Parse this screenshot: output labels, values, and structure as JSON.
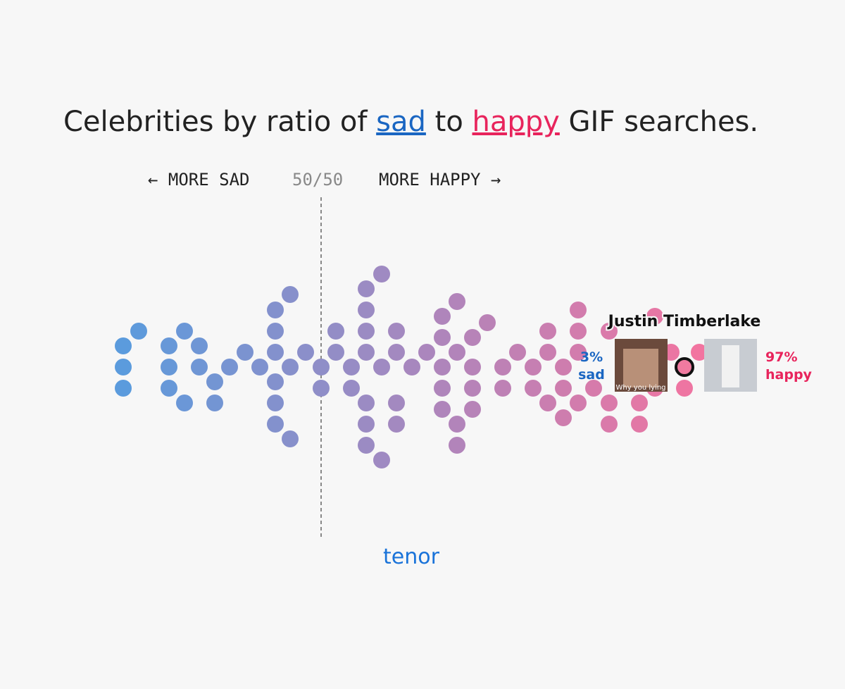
{
  "title": {
    "prefix": "Celebrities by ratio of ",
    "sad": "sad",
    "middle": " to ",
    "happy": "happy",
    "suffix": " GIF searches."
  },
  "axis": {
    "more_sad": "← MORE SAD",
    "center": "50/50",
    "more_happy": "MORE HAPPY →"
  },
  "highlight": {
    "name": "Justin Timberlake",
    "sad_value": "3%",
    "sad_label": "sad",
    "happy_value": "97%",
    "happy_label": "happy",
    "gif_caption": "Why you lying"
  },
  "footer": {
    "brand": "tenor"
  }
}
